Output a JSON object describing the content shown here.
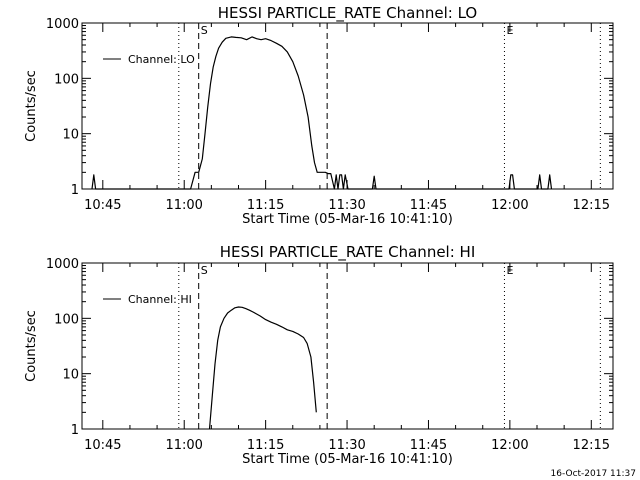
{
  "footer": {
    "timestamp": "16-Oct-2017 11:37"
  },
  "chart_data": [
    {
      "type": "line",
      "title": "HESSI PARTICLE_RATE Channel: LO",
      "xlabel": "Start Time (05-Mar-16 10:41:10)",
      "ylabel": "Counts/sec",
      "yscale": "log",
      "ylim": [
        1,
        1000
      ],
      "xlim": [
        "10:41:10",
        "12:19:00"
      ],
      "x_ticks": [
        "10:45",
        "11:00",
        "11:15",
        "11:30",
        "11:45",
        "12:00",
        "12:15"
      ],
      "y_ticks": [
        "1",
        "10",
        "100",
        "1000"
      ],
      "grid": false,
      "legend": "top-left",
      "series": [
        {
          "name": "Channel: LO",
          "x": [
            "10:43:00",
            "10:43:20",
            "10:43:40",
            "11:01:10",
            "11:02:00",
            "11:02:40",
            "11:03:20",
            "11:03:50",
            "11:04:20",
            "11:04:50",
            "11:05:20",
            "11:05:50",
            "11:06:20",
            "11:07:00",
            "11:07:40",
            "11:08:40",
            "11:09:30",
            "11:10:30",
            "11:11:30",
            "11:12:30",
            "11:13:20",
            "11:14:10",
            "11:15:00",
            "11:16:00",
            "11:17:00",
            "11:18:00",
            "11:19:00",
            "11:20:00",
            "11:21:00",
            "11:22:00",
            "11:22:50",
            "11:23:30",
            "11:24:00",
            "11:24:30",
            "11:25:00",
            "11:25:30",
            "11:26:00",
            "11:26:30",
            "11:27:00",
            "11:27:40",
            "11:28:00",
            "11:28:20",
            "11:28:40",
            "11:29:00",
            "11:29:20",
            "11:29:40",
            "11:30:10",
            "11:30:30",
            "11:30:50",
            "11:34:40",
            "11:35:00",
            "11:35:20",
            "11:59:50",
            "12:00:10",
            "12:00:30",
            "12:00:50",
            "12:05:10",
            "12:05:30",
            "12:05:50",
            "12:07:00",
            "12:07:20",
            "12:07:40"
          ],
          "y": [
            1,
            1.8,
            1,
            1,
            2,
            2,
            3.5,
            10,
            30,
            80,
            160,
            250,
            350,
            450,
            530,
            560,
            550,
            540,
            500,
            560,
            520,
            500,
            520,
            480,
            430,
            380,
            300,
            200,
            110,
            50,
            20,
            6,
            3,
            2,
            2,
            2,
            2,
            1.9,
            1.9,
            1,
            1.8,
            1,
            1.8,
            1.8,
            1,
            1.8,
            1,
            1,
            1,
            1,
            1.7,
            1,
            1,
            1.8,
            1.8,
            1,
            1,
            1.8,
            1,
            1,
            1.8,
            1
          ]
        }
      ],
      "markers": [
        {
          "label": "S",
          "time": "11:02:40",
          "style": "dashed"
        },
        {
          "label": "",
          "time": "11:26:20",
          "style": "dashed"
        },
        {
          "label": "",
          "time": "10:59:00",
          "style": "dotted"
        },
        {
          "label": "E",
          "time": "11:59:00",
          "style": "dotted"
        },
        {
          "label": "",
          "time": "12:16:40",
          "style": "dotted"
        }
      ]
    },
    {
      "type": "line",
      "title": "HESSI PARTICLE_RATE Channel: HI",
      "xlabel": "Start Time (05-Mar-16 10:41:10)",
      "ylabel": "Counts/sec",
      "yscale": "log",
      "ylim": [
        1,
        1000
      ],
      "xlim": [
        "10:41:10",
        "12:19:00"
      ],
      "x_ticks": [
        "10:45",
        "11:00",
        "11:15",
        "11:30",
        "11:45",
        "12:00",
        "12:15"
      ],
      "y_ticks": [
        "1",
        "10",
        "100",
        "1000"
      ],
      "grid": false,
      "legend": "top-left",
      "series": [
        {
          "name": "Channel: HI",
          "x": [
            "11:04:40",
            "11:05:10",
            "11:05:40",
            "11:06:10",
            "11:06:40",
            "11:07:20",
            "11:08:00",
            "11:08:40",
            "11:09:20",
            "11:10:00",
            "11:10:40",
            "11:11:20",
            "11:12:00",
            "11:12:40",
            "11:13:20",
            "11:14:00",
            "11:15:00",
            "11:16:00",
            "11:17:00",
            "11:18:00",
            "11:19:00",
            "11:20:00",
            "11:21:00",
            "11:22:00",
            "11:22:40",
            "11:23:20",
            "11:23:50",
            "11:24:20"
          ],
          "y": [
            1,
            4,
            15,
            40,
            70,
            100,
            125,
            140,
            155,
            160,
            158,
            150,
            140,
            130,
            120,
            110,
            95,
            85,
            78,
            70,
            62,
            58,
            52,
            45,
            35,
            20,
            7,
            2
          ]
        }
      ],
      "markers": [
        {
          "label": "S",
          "time": "11:02:40",
          "style": "dashed"
        },
        {
          "label": "",
          "time": "11:26:20",
          "style": "dashed"
        },
        {
          "label": "",
          "time": "10:59:00",
          "style": "dotted"
        },
        {
          "label": "E",
          "time": "11:59:00",
          "style": "dotted"
        },
        {
          "label": "",
          "time": "12:16:40",
          "style": "dotted"
        }
      ]
    }
  ]
}
